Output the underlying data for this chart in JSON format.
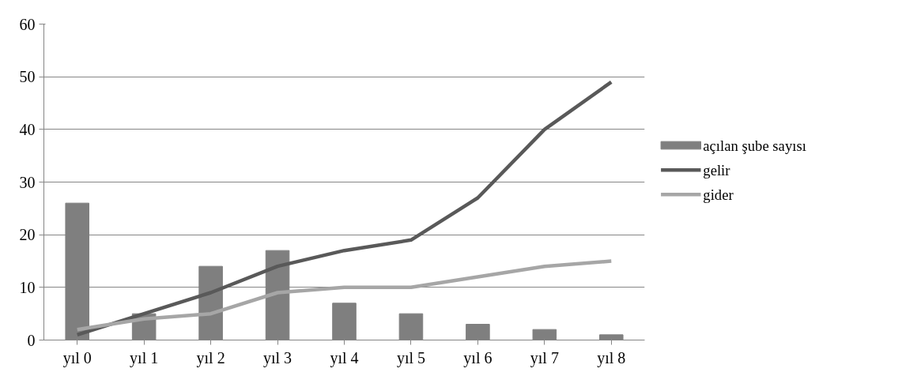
{
  "chart_data": {
    "type": "bar",
    "categories": [
      "yıl 0",
      "yıl 1",
      "yıl 2",
      "yıl 3",
      "yıl 4",
      "yıl 5",
      "yıl 6",
      "yıl 7",
      "yıl 8"
    ],
    "series": [
      {
        "name": "açılan şube sayısı",
        "color": "#7f7f7f",
        "values": [
          26,
          5,
          14,
          17,
          7,
          5,
          3,
          2,
          1
        ]
      },
      {
        "name": "gelir",
        "type": "line",
        "color": "#595959",
        "values": [
          1,
          5,
          9,
          14,
          17,
          19,
          27,
          40,
          49
        ]
      },
      {
        "name": "gider",
        "type": "line",
        "color": "#a6a6a6",
        "values": [
          2,
          4,
          5,
          9,
          10,
          10,
          12,
          14,
          15
        ]
      }
    ],
    "ylim": [
      0,
      60
    ],
    "yticks": [
      0,
      10,
      20,
      30,
      40,
      50,
      60
    ],
    "grid": "y",
    "legend": "right",
    "marker": "none",
    "line_style": "solid"
  }
}
